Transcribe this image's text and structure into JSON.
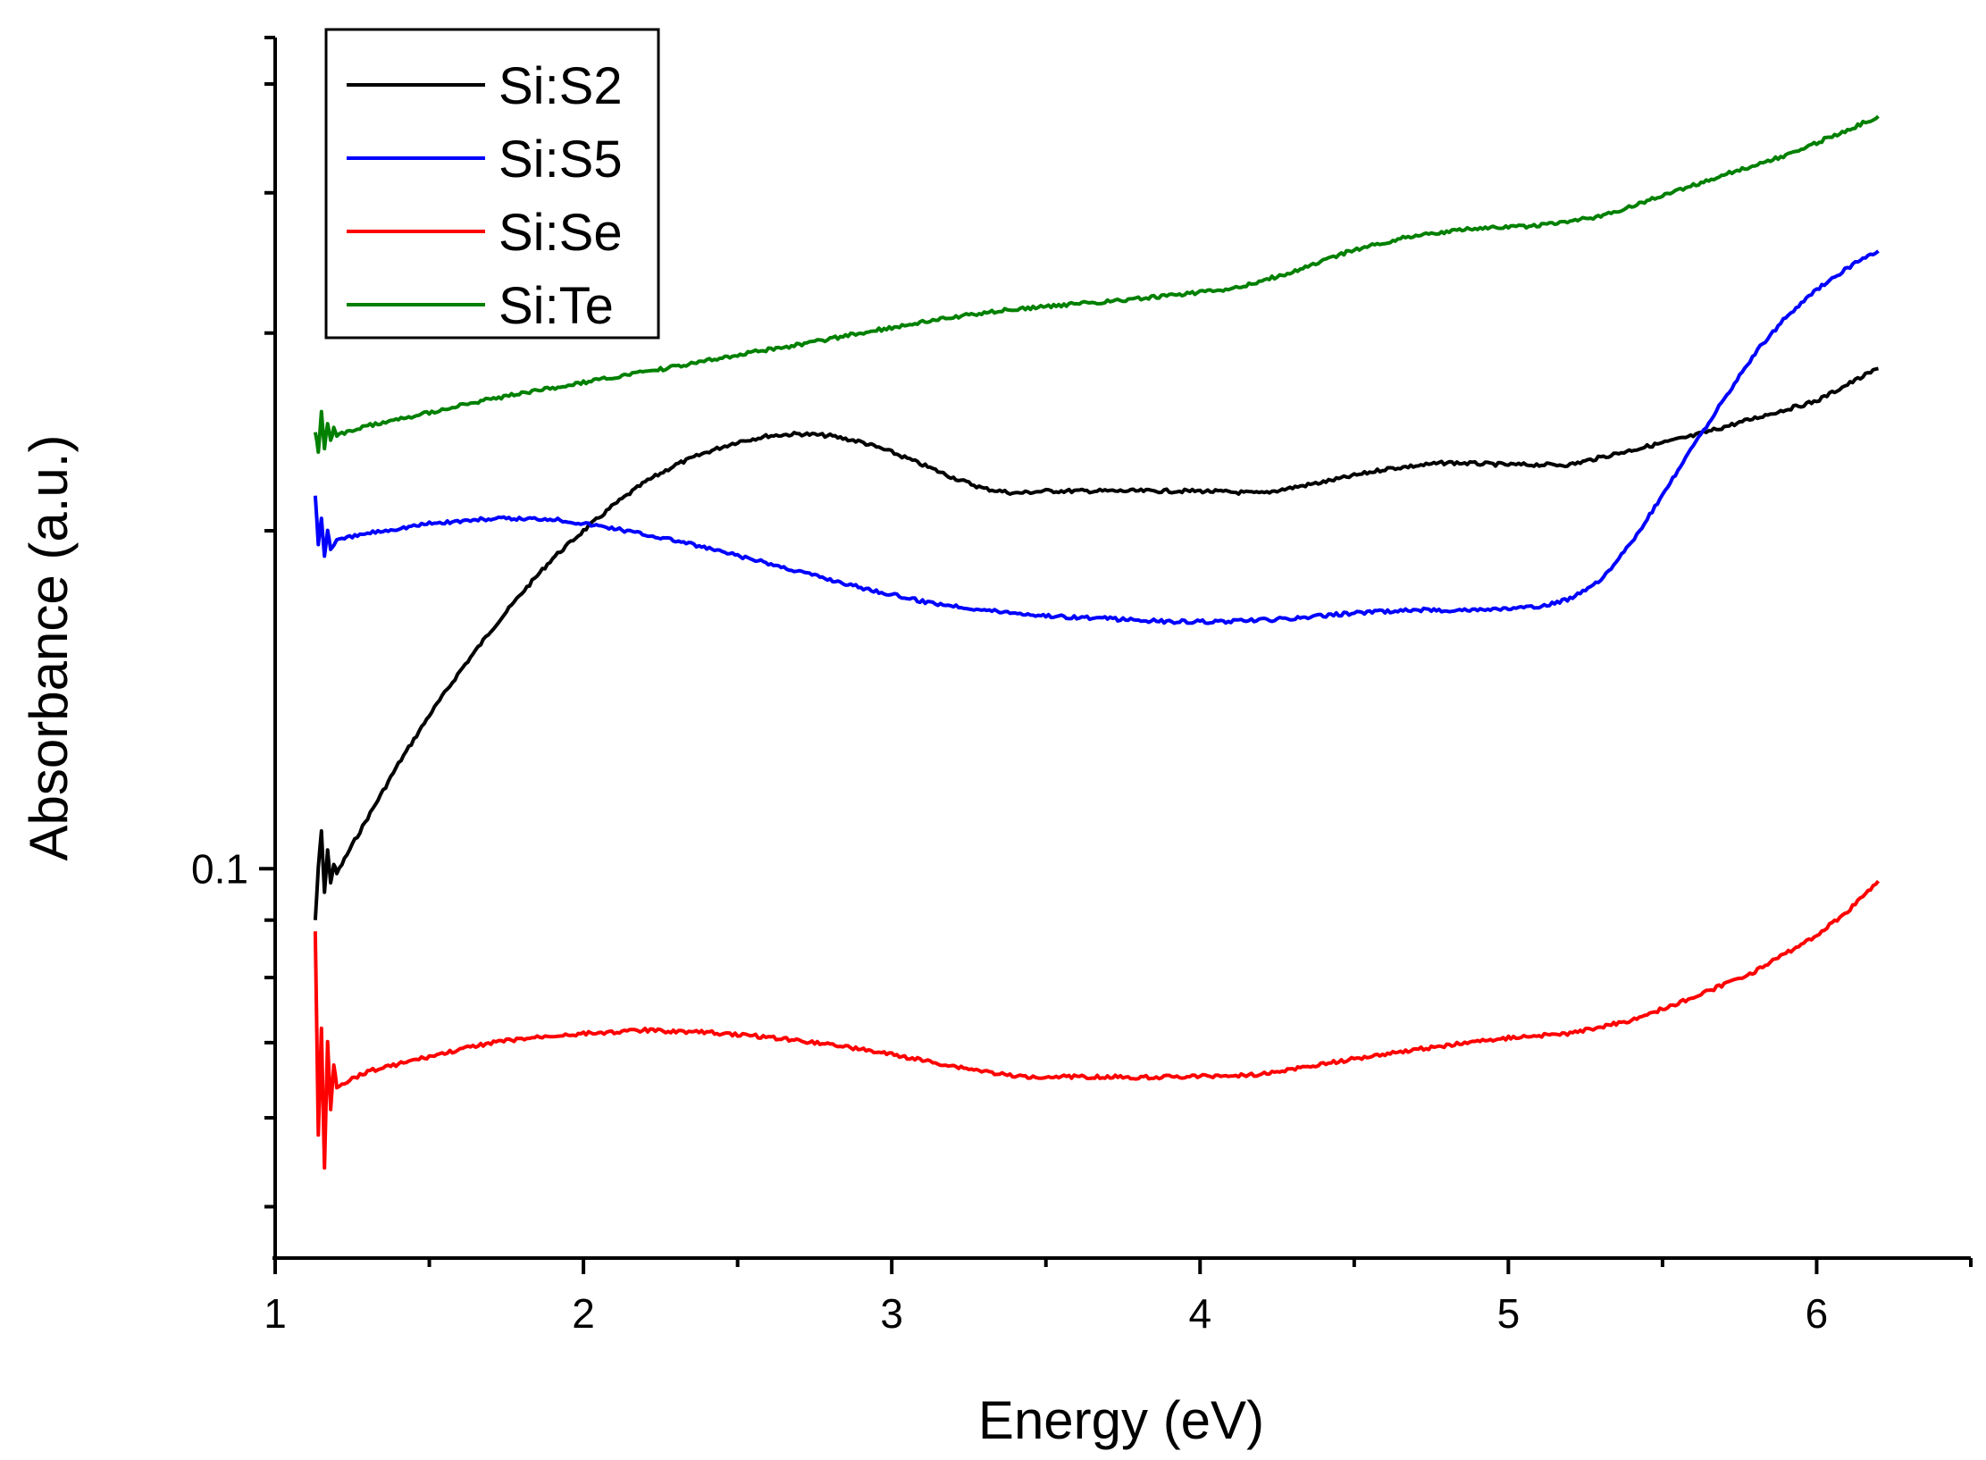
{
  "chart_data": {
    "type": "line",
    "xlabel": "Energy (eV)",
    "ylabel": "Absorbance (a.u.)",
    "xlim": [
      1,
      6.5
    ],
    "ylim": [
      0.045,
      0.55
    ],
    "yscale": "log",
    "x_ticks": [
      1,
      2,
      3,
      4,
      5,
      6
    ],
    "x_minor_ticks": [
      1.5,
      2.5,
      3.5,
      4.5,
      5.5,
      6.5
    ],
    "y_major_ticks": [
      0.1
    ],
    "y_major_tick_labels": [
      "0.1"
    ],
    "y_minor_ticks": [
      0.05,
      0.06,
      0.07,
      0.08,
      0.09,
      0.2,
      0.3,
      0.4,
      0.5
    ],
    "grid": false,
    "legend_position": "top-left",
    "series": [
      {
        "name": "Si:S2",
        "color": "#000000",
        "x": [
          1.13,
          1.14,
          1.15,
          1.16,
          1.17,
          1.18,
          1.19,
          1.2,
          1.25,
          1.3,
          1.4,
          1.5,
          1.6,
          1.7,
          1.8,
          1.9,
          2.0,
          2.1,
          2.2,
          2.3,
          2.4,
          2.5,
          2.6,
          2.7,
          2.8,
          2.9,
          3.0,
          3.1,
          3.2,
          3.3,
          3.4,
          3.5,
          3.6,
          3.8,
          4.0,
          4.2,
          4.4,
          4.6,
          4.8,
          5.0,
          5.2,
          5.4,
          5.6,
          5.8,
          6.0,
          6.1,
          6.2
        ],
        "y": [
          0.09,
          0.1,
          0.108,
          0.095,
          0.104,
          0.097,
          0.101,
          0.099,
          0.105,
          0.111,
          0.124,
          0.137,
          0.15,
          0.163,
          0.176,
          0.189,
          0.2,
          0.211,
          0.221,
          0.229,
          0.235,
          0.24,
          0.243,
          0.244,
          0.243,
          0.24,
          0.235,
          0.229,
          0.223,
          0.218,
          0.216,
          0.217,
          0.217,
          0.217,
          0.217,
          0.216,
          0.221,
          0.227,
          0.23,
          0.229,
          0.229,
          0.236,
          0.243,
          0.252,
          0.261,
          0.27,
          0.279
        ]
      },
      {
        "name": "Si:S5",
        "color": "#0000ff",
        "x": [
          1.13,
          1.14,
          1.15,
          1.16,
          1.17,
          1.18,
          1.2,
          1.3,
          1.5,
          1.7,
          1.9,
          2.1,
          2.3,
          2.5,
          2.7,
          2.9,
          3.1,
          3.3,
          3.5,
          3.7,
          3.9,
          4.1,
          4.3,
          4.5,
          4.7,
          4.9,
          5.1,
          5.2,
          5.3,
          5.4,
          5.5,
          5.6,
          5.7,
          5.8,
          5.9,
          6.0,
          6.1,
          6.2
        ],
        "y": [
          0.215,
          0.195,
          0.205,
          0.19,
          0.2,
          0.193,
          0.196,
          0.199,
          0.203,
          0.205,
          0.205,
          0.201,
          0.196,
          0.19,
          0.184,
          0.178,
          0.173,
          0.17,
          0.168,
          0.167,
          0.166,
          0.166,
          0.167,
          0.169,
          0.17,
          0.17,
          0.171,
          0.174,
          0.181,
          0.195,
          0.215,
          0.238,
          0.262,
          0.288,
          0.31,
          0.328,
          0.343,
          0.355
        ]
      },
      {
        "name": "Si:Se",
        "color": "#ff0000",
        "x": [
          1.13,
          1.14,
          1.15,
          1.16,
          1.17,
          1.18,
          1.19,
          1.2,
          1.25,
          1.3,
          1.4,
          1.5,
          1.6,
          1.7,
          1.8,
          1.9,
          2.0,
          2.2,
          2.4,
          2.6,
          2.8,
          3.0,
          3.2,
          3.4,
          3.6,
          3.8,
          4.0,
          4.2,
          4.4,
          4.6,
          4.8,
          5.0,
          5.2,
          5.4,
          5.6,
          5.8,
          6.0,
          6.1,
          6.2
        ],
        "y": [
          0.088,
          0.058,
          0.072,
          0.054,
          0.07,
          0.061,
          0.067,
          0.064,
          0.065,
          0.066,
          0.067,
          0.068,
          0.069,
          0.07,
          0.0705,
          0.071,
          0.0713,
          0.0718,
          0.0715,
          0.0708,
          0.0698,
          0.0683,
          0.0667,
          0.0653,
          0.0653,
          0.0652,
          0.0653,
          0.0656,
          0.067,
          0.0684,
          0.0696,
          0.0707,
          0.0713,
          0.0733,
          0.0768,
          0.081,
          0.0872,
          0.0916,
          0.0975
        ]
      },
      {
        "name": "Si:Te",
        "color": "#008000",
        "x": [
          1.13,
          1.14,
          1.15,
          1.16,
          1.17,
          1.18,
          1.19,
          1.2,
          1.3,
          1.5,
          1.7,
          1.9,
          2.1,
          2.3,
          2.5,
          2.7,
          2.9,
          3.1,
          3.3,
          3.5,
          3.7,
          3.9,
          4.1,
          4.3,
          4.5,
          4.7,
          4.9,
          5.1,
          5.3,
          5.5,
          5.7,
          5.9,
          6.1,
          6.2
        ],
        "y": [
          0.245,
          0.235,
          0.255,
          0.237,
          0.25,
          0.24,
          0.247,
          0.243,
          0.248,
          0.255,
          0.262,
          0.268,
          0.274,
          0.28,
          0.287,
          0.293,
          0.3,
          0.307,
          0.313,
          0.317,
          0.32,
          0.324,
          0.328,
          0.34,
          0.356,
          0.367,
          0.372,
          0.374,
          0.381,
          0.398,
          0.415,
          0.432,
          0.455,
          0.468
        ]
      }
    ]
  }
}
